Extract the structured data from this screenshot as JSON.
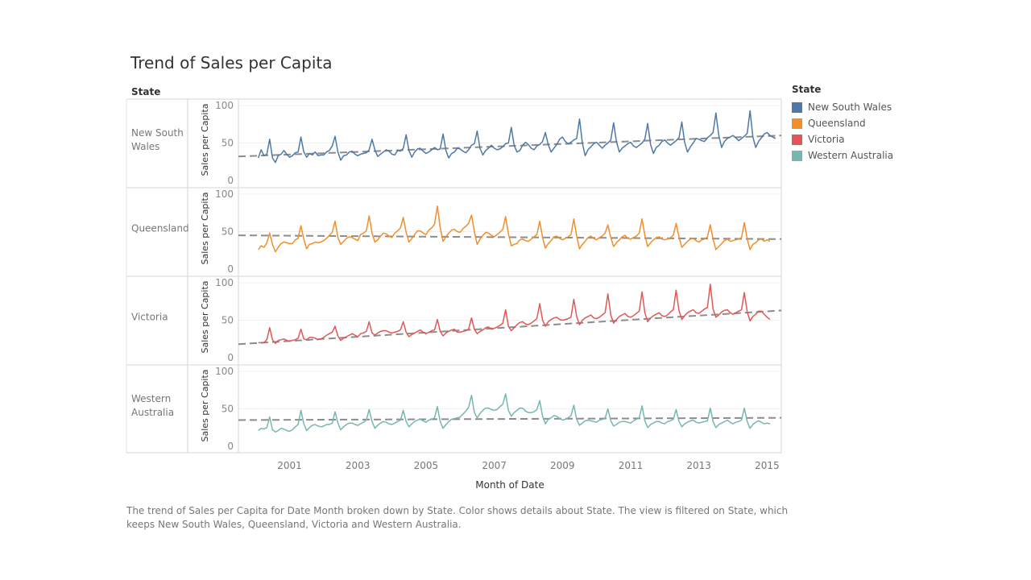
{
  "title": "Trend of Sales per Capita",
  "caption": "The trend of Sales per Capita for Date Month broken down by State.  Color shows details about State. The view is filtered on State, which keeps New South Wales, Queensland, Victoria and Western Australia.",
  "legend": {
    "title": "State",
    "items": [
      {
        "label": "New South Wales",
        "color": "#4e79a7"
      },
      {
        "label": "Queensland",
        "color": "#f28e2b"
      },
      {
        "label": "Victoria",
        "color": "#e15759"
      },
      {
        "label": "Western Australia",
        "color": "#76b7b2"
      }
    ]
  },
  "chart_data": {
    "type": "line",
    "row_header": "State",
    "xlabel": "Month of Date",
    "ylabel": "Sales per Capita",
    "xlim": [
      "2000-01",
      "2015-12"
    ],
    "ylim": [
      0,
      100
    ],
    "x_ticks": [
      "2001",
      "2003",
      "2005",
      "2007",
      "2009",
      "2011",
      "2013",
      "2015"
    ],
    "y_ticks": [
      0,
      50,
      100
    ],
    "x_start": "2000-08",
    "x_step": "1 month",
    "trend_line": "dashed, grey, linear",
    "series": [
      {
        "name": "New South Wales",
        "color": "#4e79a7",
        "trend": [
          32,
          60
        ],
        "values": [
          30,
          41,
          33,
          35,
          55,
          30,
          24,
          33,
          35,
          40,
          35,
          31,
          33,
          37,
          38,
          58,
          38,
          31,
          36,
          34,
          38,
          33,
          34,
          34,
          38,
          40,
          46,
          59,
          38,
          27,
          33,
          34,
          38,
          39,
          35,
          33,
          35,
          36,
          37,
          41,
          55,
          41,
          32,
          35,
          38,
          41,
          39,
          35,
          34,
          40,
          39,
          43,
          61,
          40,
          31,
          38,
          42,
          43,
          39,
          36,
          38,
          41,
          44,
          41,
          42,
          62,
          40,
          30,
          36,
          38,
          43,
          42,
          39,
          37,
          41,
          47,
          49,
          66,
          43,
          34,
          40,
          43,
          47,
          43,
          41,
          42,
          45,
          49,
          50,
          71,
          47,
          38,
          40,
          47,
          51,
          48,
          43,
          41,
          46,
          48,
          52,
          64,
          48,
          38,
          43,
          48,
          55,
          58,
          52,
          49,
          51,
          54,
          56,
          82,
          50,
          33,
          41,
          45,
          49,
          51,
          47,
          43,
          47,
          50,
          54,
          77,
          52,
          38,
          43,
          46,
          49,
          51,
          46,
          44,
          47,
          50,
          55,
          76,
          48,
          36,
          44,
          47,
          52,
          54,
          50,
          47,
          50,
          53,
          57,
          78,
          51,
          38,
          45,
          50,
          56,
          55,
          53,
          52,
          57,
          60,
          64,
          90,
          60,
          44,
          52,
          56,
          58,
          60,
          57,
          53,
          56,
          59,
          63,
          93,
          58,
          44,
          52,
          57,
          62,
          64,
          60,
          58,
          56
        ]
      },
      {
        "name": "Queensland",
        "color": "#f28e2b",
        "trend": [
          45,
          40
        ],
        "values": [
          26,
          31,
          29,
          35,
          48,
          33,
          23,
          29,
          34,
          36,
          35,
          34,
          34,
          39,
          41,
          58,
          40,
          27,
          33,
          34,
          36,
          35,
          36,
          38,
          41,
          45,
          49,
          64,
          42,
          33,
          37,
          41,
          43,
          42,
          40,
          38,
          46,
          48,
          51,
          71,
          48,
          36,
          39,
          44,
          48,
          47,
          44,
          42,
          48,
          51,
          55,
          69,
          49,
          36,
          41,
          46,
          51,
          51,
          48,
          46,
          52,
          55,
          60,
          84,
          55,
          37,
          43,
          48,
          52,
          53,
          50,
          49,
          54,
          57,
          61,
          72,
          50,
          33,
          40,
          45,
          49,
          48,
          45,
          43,
          46,
          49,
          53,
          70,
          47,
          31,
          33,
          34,
          39,
          40,
          38,
          37,
          40,
          43,
          46,
          64,
          42,
          28,
          34,
          38,
          43,
          44,
          41,
          39,
          41,
          43,
          46,
          67,
          44,
          27,
          33,
          37,
          42,
          44,
          41,
          39,
          42,
          44,
          48,
          59,
          42,
          30,
          35,
          39,
          43,
          45,
          41,
          40,
          42,
          44,
          48,
          67,
          45,
          30,
          35,
          39,
          42,
          43,
          40,
          39,
          40,
          42,
          45,
          61,
          43,
          29,
          33,
          37,
          40,
          41,
          38,
          36,
          39,
          40,
          43,
          59,
          40,
          26,
          30,
          34,
          38,
          40,
          37,
          38,
          39,
          40,
          42,
          62,
          40,
          26,
          33,
          35,
          39,
          40,
          37,
          39,
          37
        ]
      },
      {
        "name": "Victoria",
        "color": "#e15759",
        "trend": [
          18,
          63
        ],
        "values": [
          20,
          20,
          20,
          24,
          40,
          24,
          19,
          23,
          24,
          25,
          23,
          22,
          23,
          24,
          26,
          38,
          25,
          24,
          27,
          27,
          26,
          24,
          25,
          27,
          30,
          32,
          34,
          42,
          29,
          23,
          26,
          28,
          30,
          32,
          30,
          28,
          32,
          33,
          35,
          48,
          33,
          30,
          33,
          35,
          36,
          36,
          34,
          33,
          34,
          35,
          37,
          48,
          34,
          28,
          31,
          33,
          35,
          37,
          34,
          32,
          34,
          36,
          37,
          51,
          35,
          29,
          33,
          35,
          37,
          38,
          34,
          34,
          35,
          36,
          38,
          53,
          38,
          32,
          35,
          37,
          40,
          41,
          38,
          39,
          41,
          43,
          46,
          64,
          42,
          36,
          40,
          44,
          47,
          48,
          45,
          44,
          46,
          49,
          52,
          72,
          50,
          42,
          48,
          51,
          53,
          54,
          51,
          50,
          51,
          52,
          54,
          78,
          55,
          44,
          50,
          53,
          55,
          57,
          53,
          52,
          54,
          57,
          60,
          85,
          57,
          46,
          51,
          55,
          57,
          59,
          55,
          54,
          56,
          59,
          62,
          88,
          60,
          48,
          53,
          56,
          58,
          60,
          56,
          55,
          57,
          61,
          64,
          90,
          63,
          51,
          56,
          60,
          62,
          64,
          60,
          59,
          62,
          65,
          67,
          98,
          65,
          54,
          57,
          61,
          63,
          64,
          60,
          58,
          60,
          62,
          64,
          87,
          61,
          49,
          55,
          58,
          62,
          62,
          58,
          54,
          51
        ]
      },
      {
        "name": "Western Australia",
        "color": "#76b7b2",
        "trend": [
          35,
          38
        ],
        "values": [
          21,
          24,
          23,
          25,
          39,
          22,
          19,
          21,
          24,
          23,
          21,
          20,
          22,
          26,
          29,
          48,
          30,
          21,
          25,
          28,
          29,
          27,
          26,
          27,
          29,
          29,
          31,
          46,
          31,
          22,
          26,
          29,
          31,
          31,
          29,
          28,
          30,
          32,
          35,
          49,
          33,
          24,
          28,
          31,
          33,
          32,
          30,
          29,
          31,
          33,
          35,
          48,
          33,
          26,
          30,
          33,
          35,
          36,
          34,
          32,
          35,
          36,
          38,
          53,
          33,
          24,
          29,
          33,
          36,
          37,
          38,
          39,
          43,
          47,
          52,
          68,
          45,
          38,
          44,
          48,
          51,
          51,
          49,
          48,
          49,
          53,
          56,
          70,
          48,
          40,
          45,
          48,
          51,
          51,
          47,
          45,
          45,
          46,
          49,
          61,
          40,
          30,
          36,
          38,
          41,
          40,
          37,
          35,
          36,
          38,
          41,
          55,
          36,
          28,
          31,
          34,
          35,
          34,
          33,
          32,
          35,
          36,
          37,
          50,
          34,
          27,
          29,
          32,
          33,
          33,
          32,
          31,
          34,
          36,
          38,
          54,
          34,
          25,
          29,
          31,
          33,
          33,
          31,
          30,
          33,
          34,
          36,
          49,
          33,
          26,
          30,
          32,
          34,
          35,
          32,
          31,
          32,
          33,
          34,
          51,
          33,
          25,
          29,
          31,
          33,
          35,
          32,
          30,
          32,
          33,
          35,
          51,
          33,
          24,
          29,
          32,
          34,
          32,
          30,
          31,
          30
        ]
      }
    ]
  }
}
